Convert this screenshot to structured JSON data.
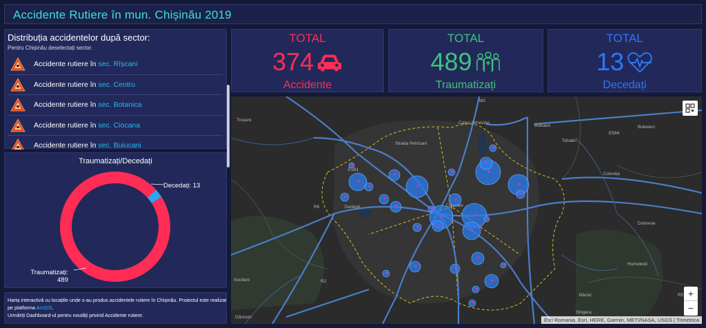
{
  "header": {
    "title": "Accidente Rutiere în mun. Chișinău 2019"
  },
  "sectors": {
    "title": "Distribuția accidentelor după sector:",
    "subtitle": "Pentru Chișinău deselectați sector.",
    "prefix": "Accidente rutiere în",
    "items": [
      {
        "sector": "sec. Rîșcani"
      },
      {
        "sector": "sec. Centru"
      },
      {
        "sector": "sec. Botanica"
      },
      {
        "sector": "sec. Ciocana"
      },
      {
        "sector": "sec. Buiucani"
      }
    ]
  },
  "donut": {
    "title": "Traumatizați/Decedați",
    "injured_label": "Traumatizați:",
    "injured_value": "489",
    "deaths_label": "Decedați: 13",
    "injured_count": 489,
    "deaths_count": 13,
    "injured_color": "#ff2d55",
    "deaths_color": "#2fa4f0"
  },
  "info": {
    "line1": "Harta interactivă cu locațiile unde s-au produs accidentele rutiere în Chișinău. Proiectul este realizat pe platforma",
    "link": "ArcGIS",
    "line1_end": ".",
    "line2": "Urmăriți Dashboard-ul pentru noutăți privind Accidente rutiere."
  },
  "kpis": {
    "accidents": {
      "title": "TOTAL",
      "value": "374",
      "label": "Accidente",
      "color": "#ff2d55",
      "icon": "car-icon"
    },
    "injured": {
      "title": "TOTAL",
      "value": "489",
      "label": "Traumatizați",
      "color": "#3ec47a",
      "icon": "injured-people-icon"
    },
    "deaths": {
      "title": "TOTAL",
      "value": "13",
      "label": "Decedați",
      "color": "#2a78ff",
      "icon": "heartbeat-icon"
    }
  },
  "map": {
    "labels": [
      "Trușeni",
      "Durlești",
      "Chișinev",
      "Bubuieci",
      "Tohatin",
      "Colonița",
      "Dolinnoe",
      "Humulești",
      "Băcioi",
      "Sîngera",
      "Dănceni",
      "Sociteni",
      "Bubueci",
      "Strada Petricani",
      "Calea Orheiului",
      "M2",
      "E581",
      "R6",
      "R2",
      "E584",
      "R5"
    ],
    "attribution": "Esri Romania, Esri, HERE, Garmin, METI/NASA, USGS | Trimetrica",
    "zoom_in": "+",
    "zoom_out": "−",
    "point_color": "#2a7ef0",
    "accent_color": "#d43aa8"
  }
}
